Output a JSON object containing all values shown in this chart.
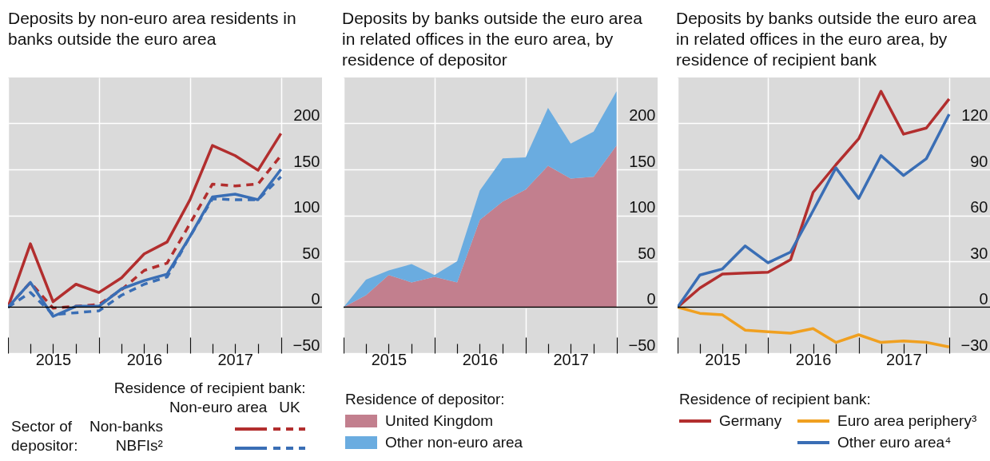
{
  "chart_data": [
    {
      "type": "line",
      "title": "Deposits by non-euro area residents in banks outside the euro area",
      "legend_title": "Residence of recipient bank:",
      "annotations": [
        "Sector of depositor:",
        "Non-banks",
        "NBFIs²",
        "Non-euro area",
        "UK"
      ],
      "x": [
        "2015-01",
        "2015-04",
        "2015-07",
        "2015-10",
        "2016-01",
        "2016-04",
        "2016-07",
        "2016-10",
        "2017-01",
        "2017-04",
        "2017-07",
        "2017-10",
        "2018-01"
      ],
      "series": [
        {
          "color": "#b22e2e",
          "line_style": "solid",
          "values": [
            0,
            69,
            6,
            25,
            16,
            32,
            58,
            71,
            117,
            176,
            165,
            149,
            189
          ]
        },
        {
          "color": "#b22e2e",
          "line_style": "dashed",
          "values": [
            0,
            27,
            -1,
            1,
            3,
            19,
            40,
            48,
            91,
            134,
            132,
            134,
            165
          ]
        },
        {
          "color": "#3a6eb5",
          "line_style": "solid",
          "values": [
            0,
            27,
            -10,
            1,
            1,
            20,
            29,
            36,
            77,
            120,
            123,
            117,
            150
          ]
        },
        {
          "color": "#3a6eb5",
          "line_style": "dashed",
          "values": [
            0,
            16,
            -8,
            -6,
            -4,
            13,
            25,
            33,
            77,
            118,
            117,
            117,
            142
          ]
        }
      ],
      "xlim": [
        "2015-01",
        "2018-06-15"
      ],
      "ylim": [
        -50,
        250
      ],
      "yticks": [
        -50,
        0,
        50,
        100,
        150,
        200
      ],
      "xticks": [
        {
          "value": "2015-01",
          "label": null
        },
        {
          "value": "2015-04",
          "label": null
        },
        {
          "value": "2015-07",
          "label": "2015"
        },
        {
          "value": "2015-10",
          "label": null
        },
        {
          "value": "2016-01",
          "label": null
        },
        {
          "value": "2016-04",
          "label": null
        },
        {
          "value": "2016-07",
          "label": "2016"
        },
        {
          "value": "2016-10",
          "label": null
        },
        {
          "value": "2017-01",
          "label": null
        },
        {
          "value": "2017-04",
          "label": null
        },
        {
          "value": "2017-07",
          "label": "2017"
        },
        {
          "value": "2017-10",
          "label": null
        },
        {
          "value": "2018-01",
          "label": null
        }
      ],
      "ref_lines": [
        {
          "axis": "y",
          "value": 0,
          "color": "#000000"
        }
      ],
      "grid": true,
      "legend": "bottom"
    },
    {
      "type": "area",
      "stacked": true,
      "title": "Deposits by banks outside the euro area in related offices in the euro area, by residence of depositor",
      "legend_title": "Residence of depositor:",
      "x": [
        "2015-01",
        "2015-04",
        "2015-07",
        "2015-10",
        "2016-01",
        "2016-04",
        "2016-07",
        "2016-10",
        "2017-01",
        "2017-04",
        "2017-07",
        "2017-10",
        "2018-01"
      ],
      "series": [
        {
          "name": "United Kingdom",
          "color": "#c27f8e",
          "values": [
            0,
            13,
            35,
            27,
            33,
            27,
            95,
            115,
            128,
            154,
            140,
            142,
            176
          ]
        },
        {
          "name": "Other non-euro area",
          "color": "#6aace0",
          "values": [
            0,
            17,
            5,
            20,
            2,
            23,
            32,
            47,
            35,
            63,
            38,
            49,
            59
          ]
        }
      ],
      "xlim": [
        "2015-01",
        "2018-06-15"
      ],
      "ylim": [
        -50,
        250
      ],
      "yticks": [
        -50,
        0,
        50,
        100,
        150,
        200
      ],
      "xticks": [
        {
          "value": "2015-01",
          "label": null
        },
        {
          "value": "2015-04",
          "label": null
        },
        {
          "value": "2015-07",
          "label": "2015"
        },
        {
          "value": "2015-10",
          "label": null
        },
        {
          "value": "2016-01",
          "label": null
        },
        {
          "value": "2016-04",
          "label": null
        },
        {
          "value": "2016-07",
          "label": "2016"
        },
        {
          "value": "2016-10",
          "label": null
        },
        {
          "value": "2017-01",
          "label": null
        },
        {
          "value": "2017-04",
          "label": null
        },
        {
          "value": "2017-07",
          "label": "2017"
        },
        {
          "value": "2017-10",
          "label": null
        },
        {
          "value": "2018-01",
          "label": null
        }
      ],
      "ref_lines": [
        {
          "axis": "y",
          "value": 0,
          "color": "#000000"
        }
      ],
      "grid": true,
      "legend": "bottom"
    },
    {
      "type": "line",
      "title": "Deposits by banks outside the euro area in related offices in the euro area, by residence of recipient bank",
      "legend_title": "Residence of recipient bank:",
      "x": [
        "2015-01",
        "2015-04",
        "2015-07",
        "2015-10",
        "2016-01",
        "2016-04",
        "2016-07",
        "2016-10",
        "2017-01",
        "2017-04",
        "2017-07",
        "2017-10",
        "2018-01"
      ],
      "series": [
        {
          "name": "Germany",
          "color": "#b22e2e",
          "values": [
            0,
            12.5,
            21.6,
            22.3,
            22.8,
            31,
            75,
            93,
            110,
            141,
            113,
            117,
            136
          ]
        },
        {
          "name": "Euro area periphery³",
          "color": "#f0a020",
          "values": [
            0,
            -4,
            -5,
            -15,
            -16,
            -17,
            -14,
            -23,
            -18,
            -23,
            -22,
            -23,
            -26
          ]
        },
        {
          "name": "Other euro area⁴",
          "color": "#3a6eb5",
          "values": [
            0,
            21,
            25,
            40,
            29,
            36,
            63,
            91,
            71,
            99,
            86,
            97,
            126
          ]
        }
      ],
      "xlim": [
        "2015-01",
        "2018-06-15"
      ],
      "ylim": [
        -30,
        150
      ],
      "yticks": [
        -30,
        0,
        30,
        60,
        90,
        120
      ],
      "xticks": [
        {
          "value": "2015-01",
          "label": null
        },
        {
          "value": "2015-04",
          "label": null
        },
        {
          "value": "2015-07",
          "label": "2015"
        },
        {
          "value": "2015-10",
          "label": null
        },
        {
          "value": "2016-01",
          "label": null
        },
        {
          "value": "2016-04",
          "label": null
        },
        {
          "value": "2016-07",
          "label": "2016"
        },
        {
          "value": "2016-10",
          "label": null
        },
        {
          "value": "2017-01",
          "label": null
        },
        {
          "value": "2017-04",
          "label": null
        },
        {
          "value": "2017-07",
          "label": "2017"
        },
        {
          "value": "2017-10",
          "label": null
        },
        {
          "value": "2018-01",
          "label": null
        }
      ],
      "ref_lines": [
        {
          "axis": "y",
          "value": 0,
          "color": "#000000"
        }
      ],
      "grid": true,
      "legend": "bottom"
    }
  ]
}
